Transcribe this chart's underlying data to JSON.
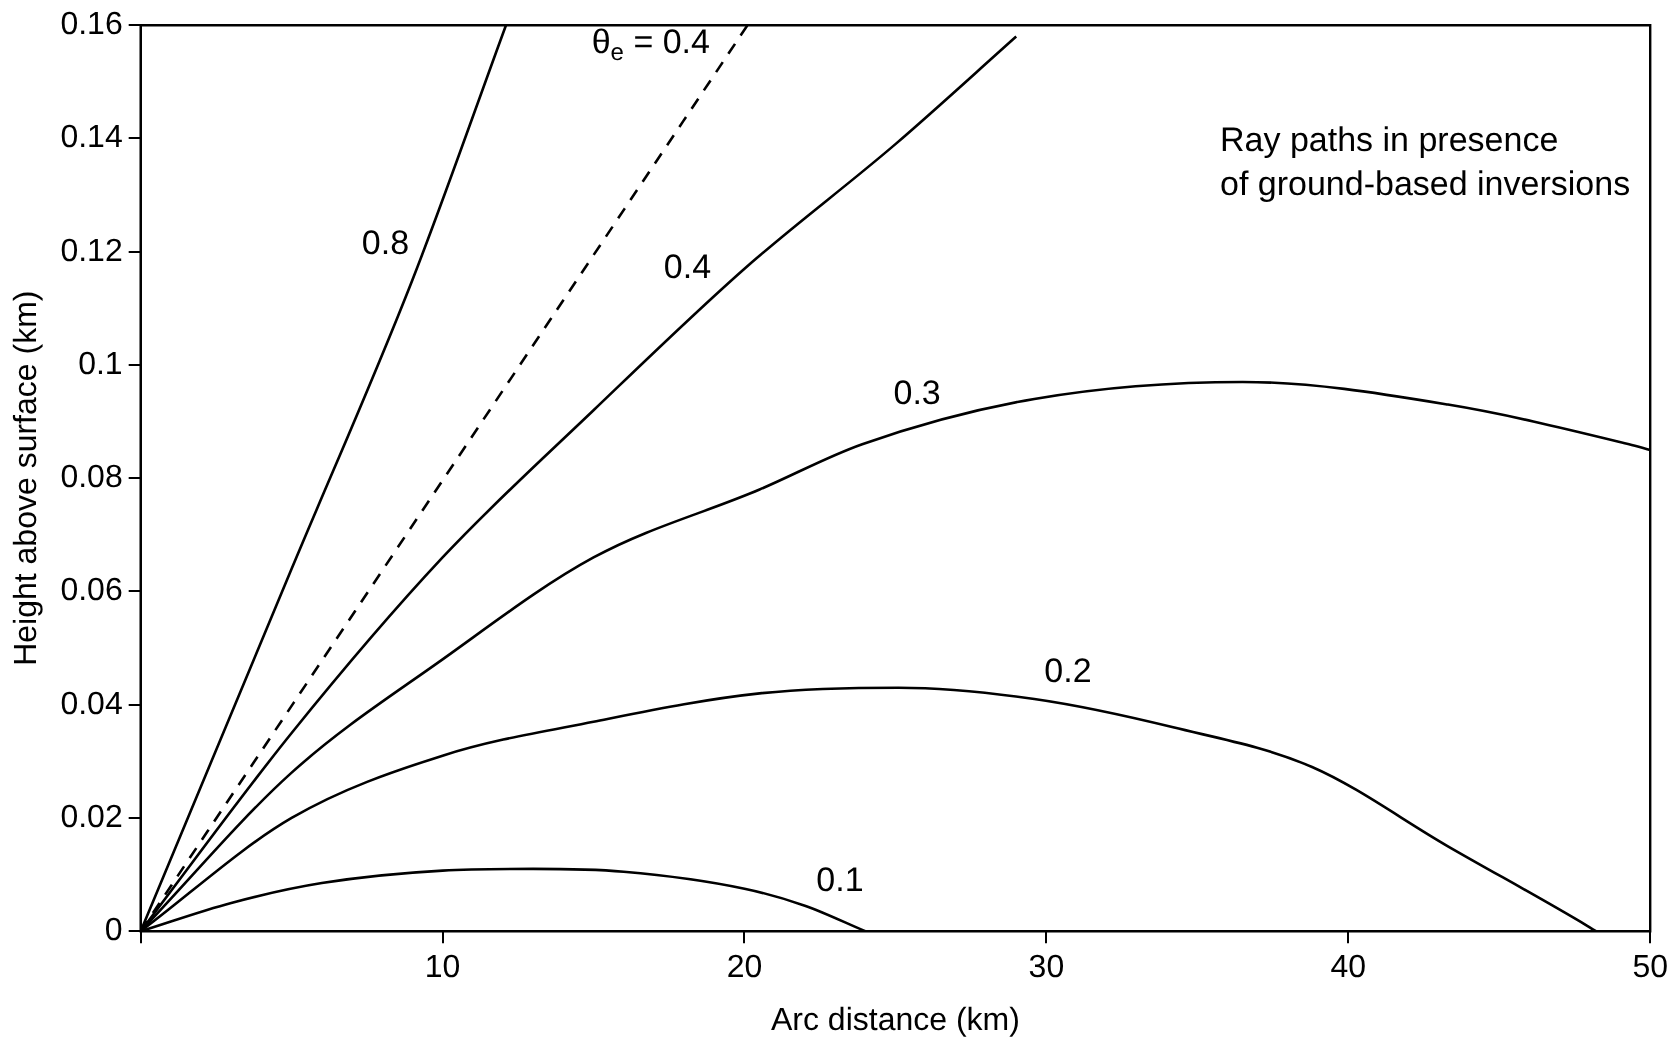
{
  "chart_data": {
    "type": "line",
    "xlabel": "Arc distance (km)",
    "ylabel": "Height above surface (km)",
    "xlim": [
      0,
      50
    ],
    "xticks": [
      {
        "value": 0,
        "label": null
      },
      10,
      20,
      30,
      40,
      50
    ],
    "ylim": [
      0,
      0.16
    ],
    "yticks": [
      0,
      0.02,
      0.04,
      0.06,
      0.08,
      0.1,
      0.12,
      0.14,
      0.16
    ],
    "grid": false,
    "legend": false,
    "marker": "none",
    "series": [
      {
        "color": "#000000",
        "x": [
          0,
          5,
          9,
          12.1
        ],
        "values": [
          0,
          0.064,
          0.115,
          0.16
        ]
      },
      {
        "color": "#000000",
        "line_style": "dashed",
        "x": [
          0,
          20.1
        ],
        "values": [
          0,
          0.16
        ]
      },
      {
        "color": "#000000",
        "x": [
          0,
          5,
          10,
          15,
          20,
          25,
          29
        ],
        "values": [
          0,
          0.035,
          0.066,
          0.092,
          0.117,
          0.139,
          0.158
        ]
      },
      {
        "color": "#000000",
        "x": [
          0,
          5,
          10,
          15,
          20.5,
          23.9,
          29.6,
          36.5,
          43.3,
          49.3,
          50
        ],
        "values": [
          0,
          0.028,
          0.048,
          0.066,
          0.078,
          0.086,
          0.094,
          0.097,
          0.093,
          0.086,
          0.085
        ]
      },
      {
        "color": "#000000",
        "x": [
          0,
          5,
          10,
          15,
          20.5,
          25.1,
          29.6,
          34.2,
          38.8,
          43.3,
          47.9,
          48.2
        ],
        "values": [
          0,
          0.02,
          0.031,
          0.037,
          0.042,
          0.043,
          0.041,
          0.036,
          0.029,
          0.015,
          0.001,
          0
        ]
      },
      {
        "color": "#000000",
        "x": [
          0,
          3,
          6,
          10,
          13,
          16,
          20,
          22,
          24
        ],
        "values": [
          0,
          0.005,
          0.0085,
          0.0107,
          0.011,
          0.0105,
          0.0075,
          0.0045,
          0
        ]
      }
    ],
    "annotations": [
      {
        "text": "0.8",
        "x": 9.3,
        "y": 0.119
      },
      {
        "text": "θ$_{e}$ = 0.4",
        "x": 18.8,
        "y": 0.15
      },
      {
        "text": "0.4",
        "x": 19,
        "y": 0.112
      },
      {
        "text": "0.3",
        "x": 26,
        "y": 0.089
      },
      {
        "text": "0.2",
        "x": 30.5,
        "y": 0.04
      },
      {
        "text": "0.1",
        "x": 22.7,
        "y": 0.003
      },
      "Ray paths in presence\nof ground-based inversions"
    ]
  }
}
